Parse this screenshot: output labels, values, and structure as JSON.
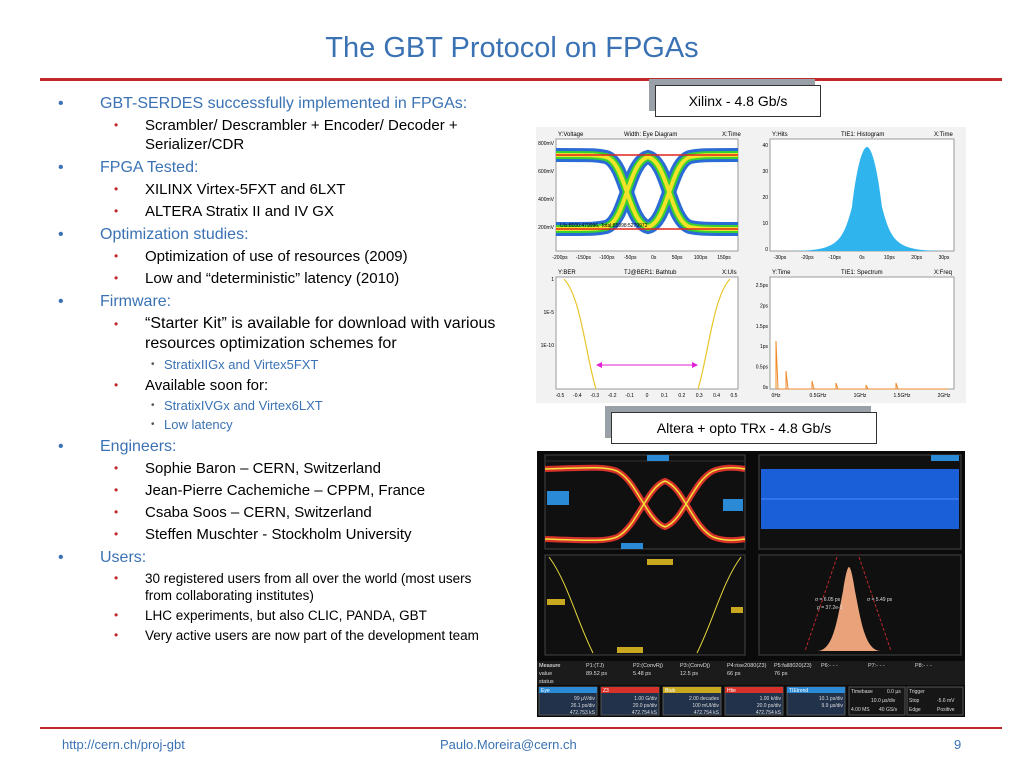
{
  "slide": {
    "title": "The GBT Protocol on FPGAs",
    "bullets": [
      {
        "level": 1,
        "text": "GBT-SERDES successfully implemented in FPGAs:"
      },
      {
        "level": 2,
        "text": "Scrambler/ Descrambler + Encoder/ Decoder + Serializer/CDR"
      },
      {
        "level": 1,
        "text": "FPGA Tested:"
      },
      {
        "level": 2,
        "text": "XILINX Virtex-5FXT and 6LXT"
      },
      {
        "level": 2,
        "text": "ALTERA Stratix II and IV GX"
      },
      {
        "level": 1,
        "text": "Optimization studies:"
      },
      {
        "level": 2,
        "text": "Optimization of use of resources (2009)"
      },
      {
        "level": 2,
        "text": "Low and “deterministic” latency (2010)"
      },
      {
        "level": 1,
        "text": "Firmware:"
      },
      {
        "level": 2,
        "text": "“Starter Kit” is available for download with various resources optimization schemes for",
        "size": "big"
      },
      {
        "level": 3,
        "text": "StratixIIGx and Virtex5FXT"
      },
      {
        "level": 2,
        "text": "Available soon for:"
      },
      {
        "level": 3,
        "text": "StratixIVGx and Virtex6LXT"
      },
      {
        "level": 3,
        "text": "Low latency"
      },
      {
        "level": 1,
        "text": "Engineers:"
      },
      {
        "level": 2,
        "text": "Sophie Baron – CERN, Switzerland"
      },
      {
        "level": 2,
        "text": "Jean-Pierre Cachemiche – CPPM, France"
      },
      {
        "level": 2,
        "text": "Csaba Soos – CERN, Switzerland"
      },
      {
        "level": 2,
        "text": "Steffen Muschter - Stockholm University"
      },
      {
        "level": 1,
        "text": "Users:"
      },
      {
        "level": 2,
        "text": "30 registered users from all over the world (most users from collaborating institutes)",
        "size": "small"
      },
      {
        "level": 2,
        "text": "LHC experiments, but also CLIC, PANDA, GBT",
        "size": "small"
      },
      {
        "level": 2,
        "text": "Very active users are now part of the development team",
        "size": "small"
      }
    ],
    "callouts": {
      "xilinx": "Xilinx - 4.8 Gb/s",
      "altera": "Altera + opto TRx - 4.8 Gb/s"
    },
    "footer": {
      "url": "http://cern.ch/proj-gbt",
      "email": "Paulo.Moreira@cern.ch",
      "page": "9"
    },
    "colors": {
      "title_blue": "#3a72b4",
      "rule_red": "#c0282c",
      "scope_bg": "#0a0a0a"
    }
  },
  "scope1": {
    "eye": {
      "y_label": "Y:Voltage",
      "title": "Width: Eye Diagram",
      "x_label": "X:Time",
      "y_ticks": [
        "800mV",
        "600mV",
        "400mV",
        "200mV"
      ],
      "x_ticks": [
        "-200ps",
        "-150ps",
        "-100ps",
        "-50ps",
        "0s",
        "50ps",
        "100ps",
        "150ps"
      ],
      "note": "UIs:8000:479996, Total:85998:5279972"
    },
    "histogram": {
      "y_label": "Y:Hits",
      "title": "TIE1: Histogram",
      "x_label": "X:Time",
      "y_ticks": [
        "40",
        "30",
        "20",
        "10",
        "0"
      ],
      "x_ticks": [
        "-30ps",
        "-20ps",
        "-10ps",
        "0s",
        "10ps",
        "20ps",
        "30ps"
      ]
    },
    "bathtub": {
      "y_label": "Y:BER",
      "title": "TJ@BER1: Bathtub",
      "x_label": "X:UIs",
      "y_ticks": [
        "1",
        "1E-5",
        "1E-10"
      ],
      "x_ticks": [
        "-0.5",
        "-0.4",
        "-0.3",
        "-0.2",
        "-0.1",
        "0",
        "0.1",
        "0.2",
        "0.3",
        "0.4",
        "0.5"
      ]
    },
    "spectrum": {
      "y_label": "Y:Time",
      "title": "TIE1: Spectrum",
      "x_label": "X:Freq",
      "y_ticks": [
        "2.5ps",
        "2ps",
        "1.5ps",
        "1ps",
        "0.5ps",
        "0s"
      ],
      "x_ticks": [
        "0Hz",
        "0.5GHz",
        "1GHz",
        "1.5GHz",
        "2GHz"
      ]
    }
  },
  "scope2": {
    "measure_header": [
      "Measure",
      "P1:(TJ)",
      "P2:(ConvRj)",
      "P3:(ConvDj)",
      "P4:rise2080(Z3)",
      "P5:fall8020(Z3)",
      "P6:- - -",
      "P7:- - -",
      "P8:- - -"
    ],
    "value_row": [
      "value",
      "89.52 ps",
      "5.48 ps",
      "12.5 ps",
      "66 ps",
      "76 ps"
    ],
    "status_label": "status",
    "sigma_labels": [
      "σ = 6.05 ps",
      "σ = 5.49 ps",
      "ρ = 37.2e-3"
    ],
    "bottom_boxes": [
      {
        "title": "Eye",
        "lines": [
          "99 µV/div",
          "26.1 ps/div",
          "472.753 kS"
        ]
      },
      {
        "title": "Z3",
        "lines": [
          "1.00 G/div",
          "20.0 ps/div",
          "472.754 kS"
        ]
      },
      {
        "title": "Btub",
        "lines": [
          "2.00 decades",
          "100 mUI/div",
          "472.754 kS"
        ]
      },
      {
        "title": "Htie",
        "lines": [
          "1.00 k/div",
          "20.0 ps/div",
          "472.754 kS"
        ]
      },
      {
        "title": "TIEtrend",
        "lines": [
          "10.1 ps/div",
          "9.9 µs/div",
          ""
        ]
      }
    ],
    "timebase": {
      "label": "Timebase",
      "value": "0.0 µs",
      "rate": "10.0 µs/div",
      "samples": "4.00 MS",
      "srate": "40 GS/s"
    },
    "trigger": {
      "label": "Trigger",
      "mode": "Stop",
      "level": "-5.6 mV",
      "edge": "Edge",
      "slope": "Positive"
    }
  }
}
